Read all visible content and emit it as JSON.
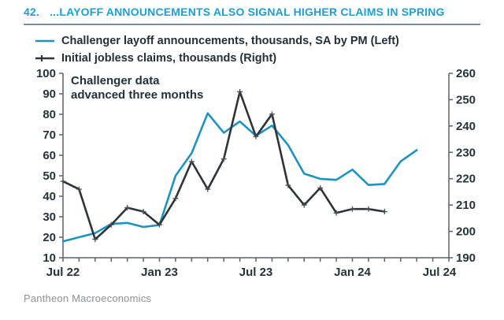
{
  "header": {
    "number": "42.",
    "title": "...LAYOFF ANNOUNCEMENTS ALSO SIGNAL HIGHER CLAIMS IN SPRING"
  },
  "legend": {
    "items": [
      {
        "label": "Challenger layoff announcements, thousands, SA by PM (Left)",
        "swatch": "blue-line"
      },
      {
        "label": "Initial jobless claims, thousands (Right)",
        "swatch": "dark-line-plus-marker"
      }
    ]
  },
  "annotation": {
    "line1": "Challenger data",
    "line2": "advanced three months"
  },
  "footer": {
    "source": "Pantheon Macroeconomics"
  },
  "colors": {
    "title_blue": "#1aa0d8",
    "rule_gray": "#73909e",
    "text_dark": "#243038",
    "axis_line_gray": "#5a6268",
    "axis_label_dark": "#253338",
    "footer_gray": "#8d9095",
    "series_blue": "#1b94c4",
    "series_dark": "#2d3439",
    "marker_gray": "#4a5156"
  },
  "chart_data": {
    "type": "line",
    "title": "...LAYOFF ANNOUNCEMENTS ALSO SIGNAL HIGHER CLAIMS IN SPRING",
    "annotation": "Challenger data advanced three months",
    "grid": false,
    "legend_position": "top-left above plot",
    "total_months": 24,
    "x_start": "Jul 22",
    "x_end": "Jul 24",
    "x_tick_labels": [
      {
        "index": 0,
        "text": "Jul 22"
      },
      {
        "index": 6,
        "text": "Jan 23"
      },
      {
        "index": 12,
        "text": "Jul 23"
      },
      {
        "index": 18,
        "text": "Jan 24"
      },
      {
        "index": 24,
        "text": "Jul 24"
      }
    ],
    "left_axis": {
      "min": 10,
      "max": 100,
      "step": 10,
      "for_series": "Challenger layoff announcements, thousands, SA by PM"
    },
    "right_axis": {
      "min": 190,
      "max": 260,
      "step": 10,
      "for_series": "Initial jobless claims, thousands"
    },
    "months": [
      "Jul 22",
      "Aug 22",
      "Sep 22",
      "Oct 22",
      "Nov 22",
      "Dec 22",
      "Jan 23",
      "Feb 23",
      "Mar 23",
      "Apr 23",
      "May 23",
      "Jun 23",
      "Jul 23",
      "Aug 23",
      "Sep 23",
      "Oct 23",
      "Nov 23",
      "Dec 23",
      "Jan 24",
      "Feb 24",
      "Mar 24",
      "Apr 24",
      "May 24"
    ],
    "series": [
      {
        "name": "Challenger layoff announcements, thousands, SA by PM (Left)",
        "axis": "left",
        "color": "#1b94c4",
        "marker": "none",
        "values": [
          18,
          20,
          22,
          26.5,
          27,
          25,
          26,
          50,
          61,
          80.5,
          71,
          76.5,
          69.5,
          74.5,
          65,
          51,
          48.5,
          48,
          53,
          45.5,
          46,
          57,
          62.5
        ]
      },
      {
        "name": "Initial jobless claims, thousands (Right)",
        "axis": "right",
        "color": "#2d3439",
        "marker": "plus",
        "values": [
          219,
          216,
          197,
          202.5,
          209,
          207.5,
          202.5,
          212.5,
          226.5,
          216,
          227.5,
          253,
          236,
          244.5,
          217.5,
          210,
          216.5,
          207,
          208.5,
          208.5,
          207.5
        ]
      }
    ]
  }
}
